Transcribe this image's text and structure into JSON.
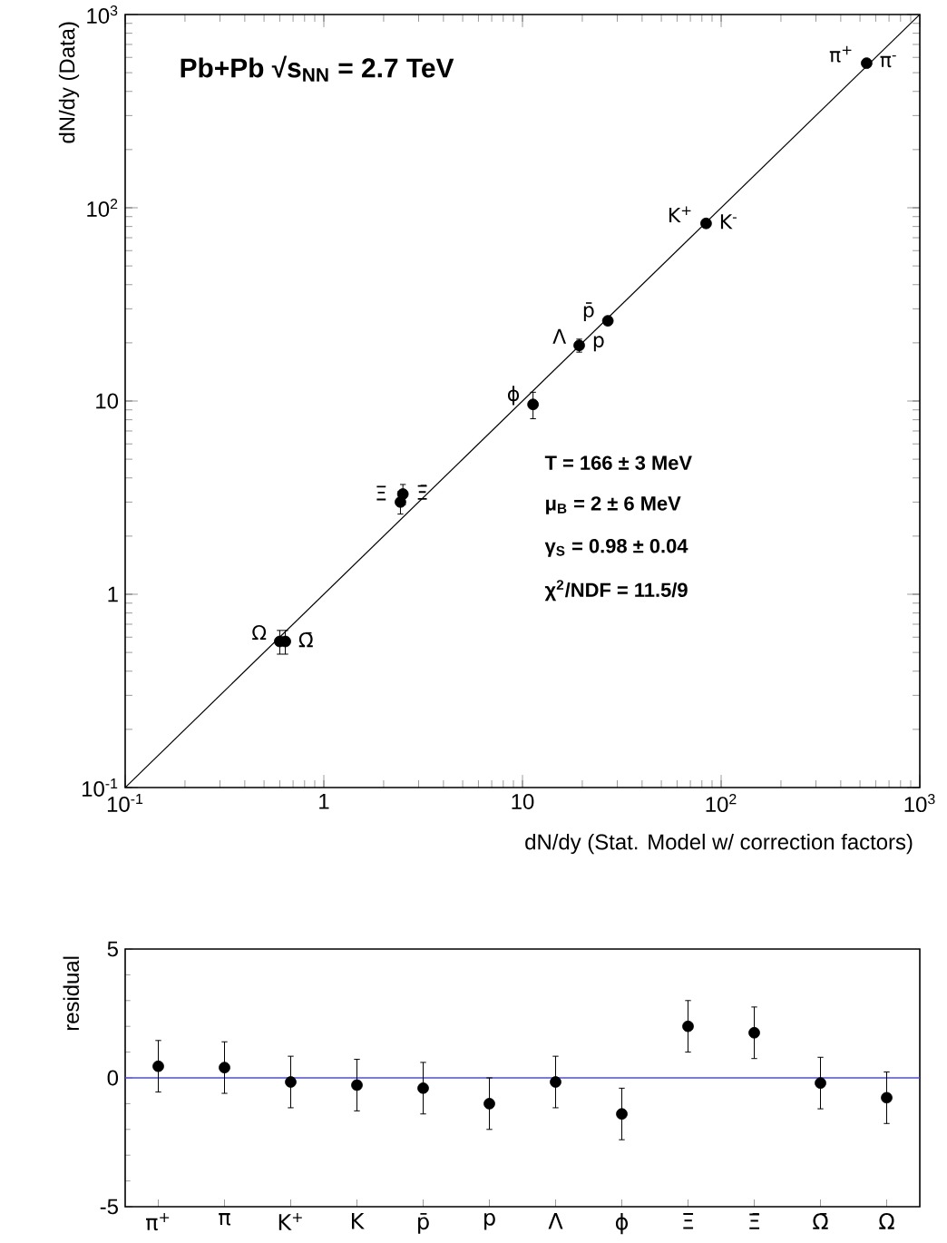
{
  "chart_data": [
    {
      "type": "scatter",
      "xlabel": "dN/dy (Stat. Model w/ correction factors)",
      "ylabel": "dN/dy (Data)",
      "log": "xy",
      "xlim": [
        0.1,
        1000
      ],
      "ylim": [
        0.1,
        1000
      ],
      "xticks": [
        {
          "value": 0.1,
          "label": "10$^{-1}$"
        },
        1,
        10,
        {
          "value": 100,
          "label": "10$^{2}$"
        },
        {
          "value": 1000,
          "label": "10$^{3}$"
        }
      ],
      "yticks": [
        {
          "value": 0.1,
          "label": "10$^{-1}$"
        },
        1,
        10,
        {
          "value": 100,
          "label": "10$^{2}$"
        },
        {
          "value": 1000,
          "label": "10$^{3}$"
        }
      ],
      "series": [
        {
          "type": "scatter",
          "color": "#000000",
          "x": [
            540,
            84,
            26.9,
            19.3,
            11.3,
            2.43,
            2.5,
            0.6,
            0.64
          ],
          "values": [
            560,
            83,
            26,
            19.4,
            9.6,
            3.0,
            3.3,
            0.57,
            0.57
          ],
          "errors": [
            null,
            null,
            null,
            1.5,
            1.5,
            0.4,
            0.4,
            0.08,
            0.08
          ]
        },
        {
          "type": "line",
          "color": "#000000",
          "x": [
            0.1,
            1000
          ],
          "values": [
            0.1,
            1000
          ]
        }
      ],
      "annotations": [
        "Pb+Pb  √s$_{NN}$ = 2.7 TeV",
        "T = 166 ± 3 MeV",
        "μ$_{B}$ = 2 ± 6 MeV",
        "γ$_{S}$ = 0.98 ± 0.04",
        "χ$^{2}$/NDF = 11.5/9",
        {
          "text": "π$^{+}$",
          "x": 540,
          "y": 560
        },
        {
          "text": "π$^{-}$",
          "x": 540,
          "y": 560
        },
        {
          "text": "K$^{+}$",
          "x": 84,
          "y": 83
        },
        {
          "text": "K$^{-}$",
          "x": 84,
          "y": 83
        },
        {
          "text": "Λ",
          "x": 19.3,
          "y": 19.4
        },
        {
          "text": "p",
          "x": 19.3,
          "y": 19.4
        },
        {
          "text": "p̄",
          "x": 26.9,
          "y": 26
        },
        {
          "text": "ϕ",
          "x": 11.3,
          "y": 9.6
        },
        {
          "text": "Ξ",
          "x": 2.43,
          "y": 3.0
        },
        {
          "text": "Ξ̄",
          "x": 2.5,
          "y": 3.3
        },
        {
          "text": "Ω",
          "x": 0.6,
          "y": 0.57
        },
        {
          "text": "Ω̄",
          "x": 0.64,
          "y": 0.57
        }
      ]
    },
    {
      "type": "scatter",
      "ylabel": "residual",
      "color": "#000000",
      "categories": [
        "π$^{+}$",
        "π",
        "K$^{+}$",
        "K",
        "p̄",
        "p",
        "Λ",
        "ϕ",
        "Ξ",
        "Ξ̄",
        "Ω̄",
        "Ω"
      ],
      "values": [
        0.45,
        0.4,
        -0.16,
        -0.28,
        -0.4,
        -1.0,
        -0.16,
        -1.4,
        2.0,
        1.75,
        -0.2,
        -0.77
      ],
      "errors": [
        1,
        1,
        1,
        1,
        1,
        1,
        1,
        1,
        1,
        1,
        1,
        1
      ],
      "ylim": [
        -5,
        5
      ],
      "yticks": [
        -5,
        0,
        5
      ],
      "ref_lines": [
        {
          "axis": "y",
          "value": 0,
          "color": "#4848ff"
        }
      ]
    }
  ]
}
